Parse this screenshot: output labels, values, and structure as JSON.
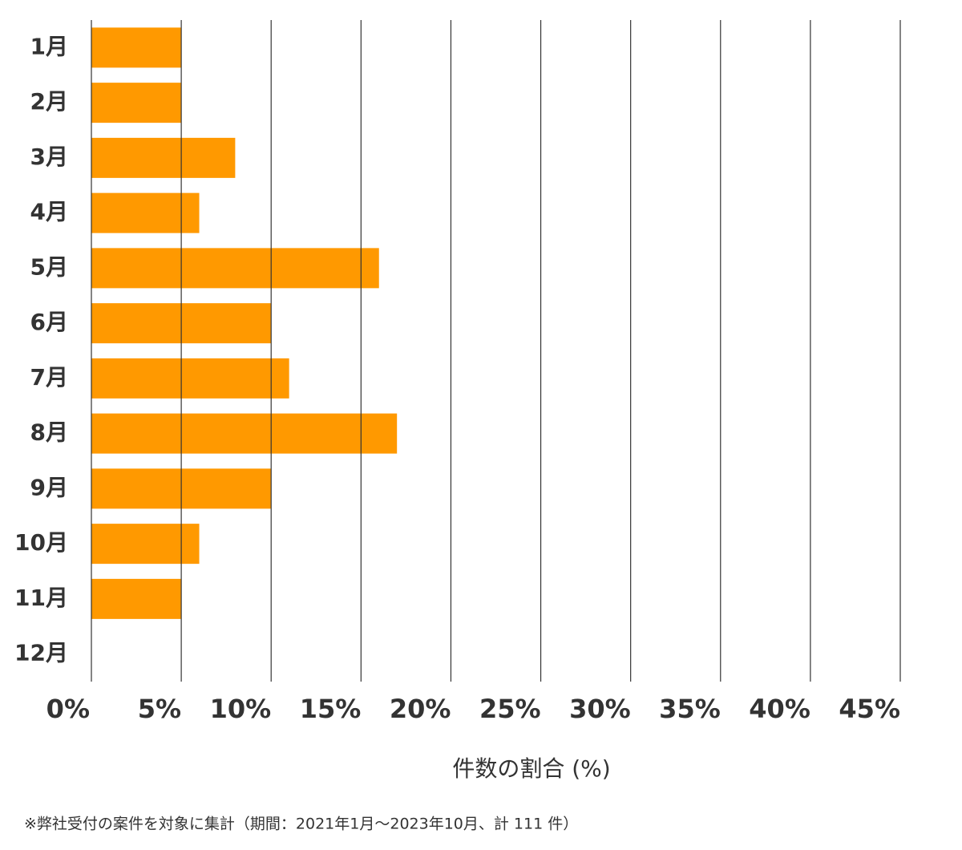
{
  "chart_data": {
    "type": "barh",
    "categories": [
      "1月",
      "2月",
      "3月",
      "4月",
      "5月",
      "6月",
      "7月",
      "8月",
      "9月",
      "10月",
      "11月",
      "12月"
    ],
    "values": [
      5,
      5,
      8,
      6,
      16,
      10,
      11,
      17,
      10,
      6,
      5,
      0
    ],
    "color": "#ff9900",
    "xlim": [
      0,
      45
    ],
    "xticks": [
      {
        "value": 0,
        "label": "0%"
      },
      {
        "value": 5,
        "label": "5%"
      },
      {
        "value": 10,
        "label": "10%"
      },
      {
        "value": 15,
        "label": "15%"
      },
      {
        "value": 20,
        "label": "20%"
      },
      {
        "value": 25,
        "label": "25%"
      },
      {
        "value": 30,
        "label": "30%"
      },
      {
        "value": 35,
        "label": "35%"
      },
      {
        "value": 40,
        "label": "40%"
      },
      {
        "value": 45,
        "label": "45%"
      }
    ],
    "grid": true,
    "x_label": "件数の割合 (%)",
    "footnote": "※弊社受付の案件を対象に集計（期間：2021年1月～2023年10月、計 111 件）"
  }
}
